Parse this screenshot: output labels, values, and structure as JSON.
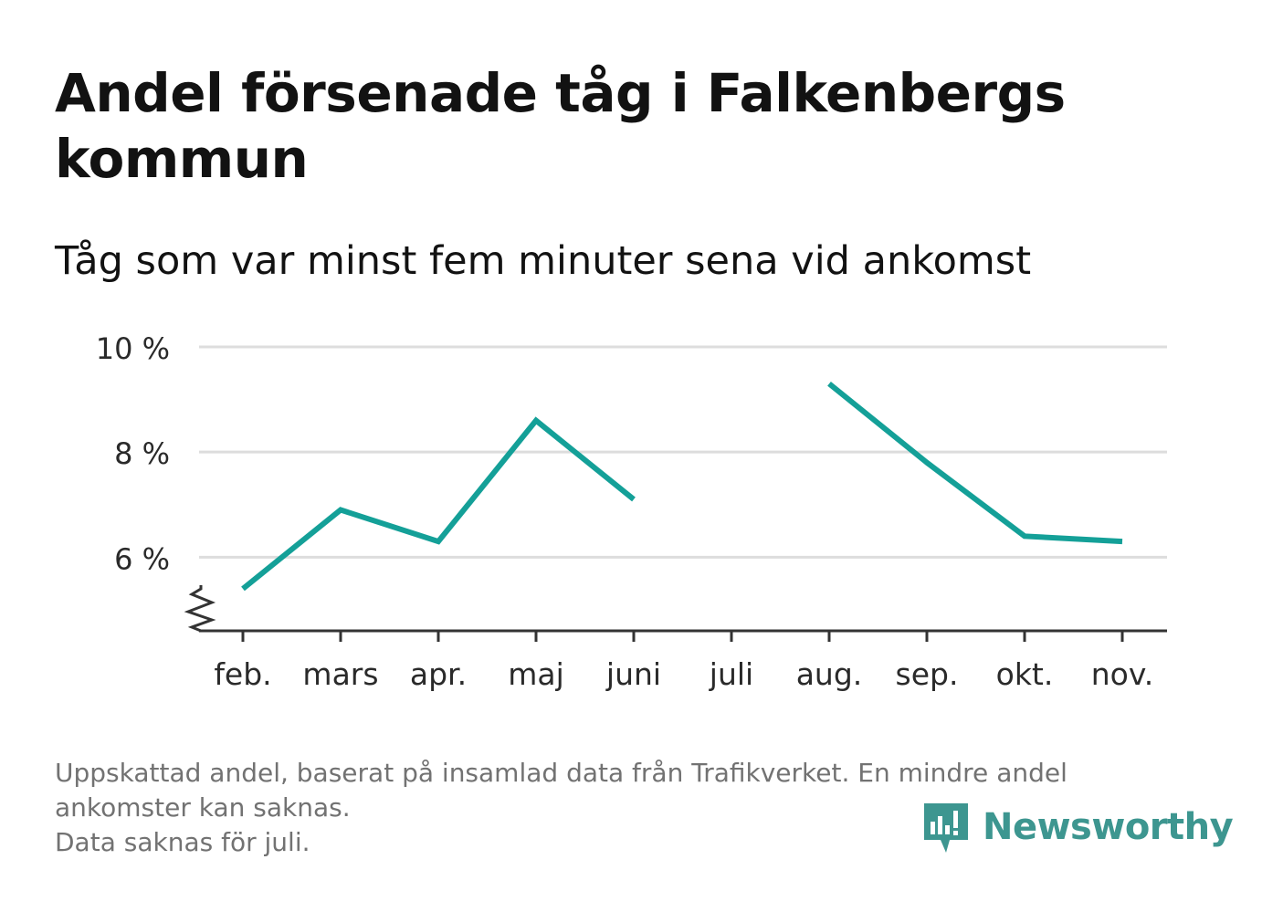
{
  "title": "Andel försenade tåg i Falkenbergs kommun",
  "subtitle": "Tåg som var minst fem minuter sena vid ankomst",
  "footnote": {
    "line1": "Uppskattad andel, baserat på insamlad data från Trafikverket. En mindre andel",
    "line2": "ankomster kan saknas.",
    "line3": "Data saknas för juli."
  },
  "brand": {
    "name": "Newsworthy",
    "logo_icon": "newsworthy-logo-icon"
  },
  "colors": {
    "line": "#14a098",
    "grid": "#dddddd",
    "axis": "#333333",
    "text": "#121212",
    "muted": "#727272",
    "brand": "#3d9690"
  },
  "chart_data": {
    "type": "line",
    "categories": [
      "feb.",
      "mars",
      "apr.",
      "maj",
      "juni",
      "juli",
      "aug.",
      "sep.",
      "okt.",
      "nov."
    ],
    "series": [
      {
        "values": [
          5.4,
          6.9,
          6.3,
          8.6,
          7.1,
          null,
          9.3,
          7.8,
          6.4,
          6.3
        ]
      }
    ],
    "y_ticks": [
      {
        "value": 6,
        "label": "6 %"
      },
      {
        "value": 8,
        "label": "8 %"
      },
      {
        "value": 10,
        "label": "10 %"
      }
    ],
    "ylim": [
      4.6,
      10
    ],
    "y_axis_break": true,
    "grid": true,
    "legend": "none",
    "xlabel": "",
    "ylabel": ""
  }
}
